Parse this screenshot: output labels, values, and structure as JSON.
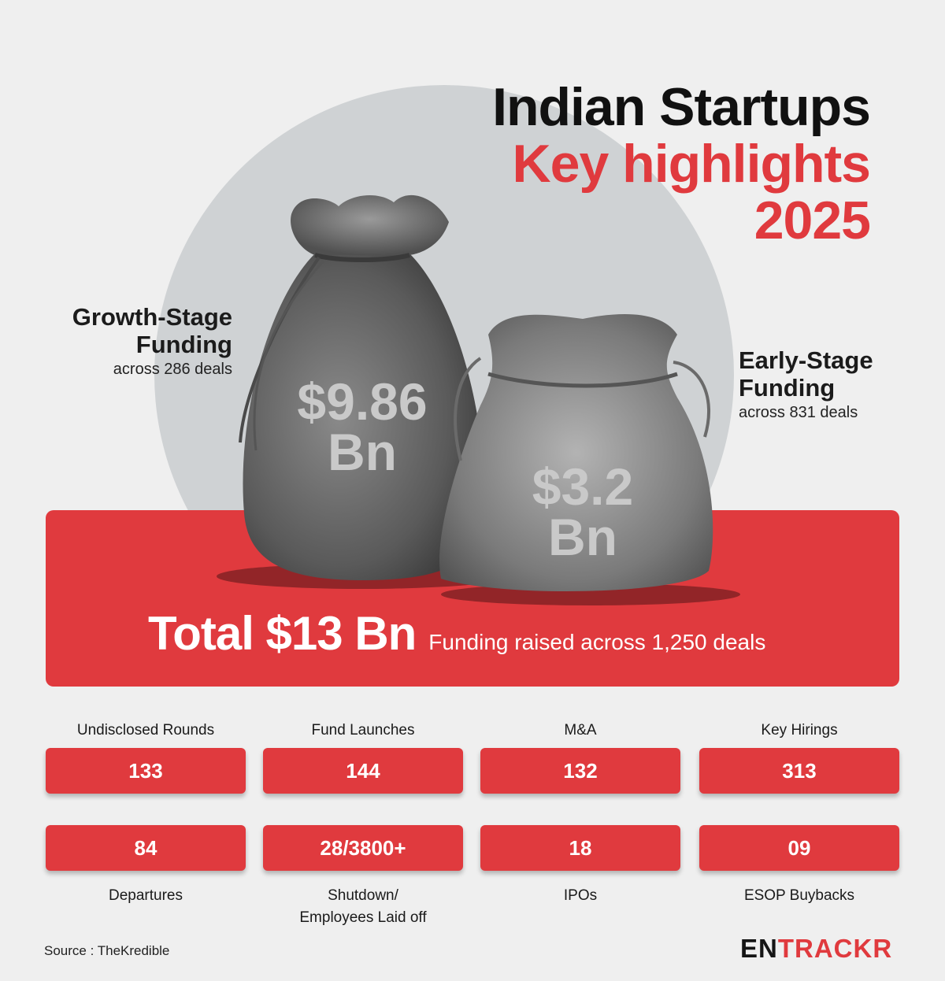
{
  "title": {
    "line1": "Indian Startups",
    "line2": "Key highlights",
    "line3": "2025"
  },
  "growth": {
    "title_line1": "Growth-Stage",
    "title_line2": "Funding",
    "subtitle": "across 286 deals",
    "amount_line1": "$9.86",
    "amount_line2": "Bn"
  },
  "early": {
    "title_line1": "Early-Stage",
    "title_line2": "Funding",
    "subtitle": "across 831 deals",
    "amount_line1": "$3.2",
    "amount_line2": "Bn"
  },
  "total": {
    "amount": "Total $13 Bn",
    "description": "Funding raised across 1,250 deals"
  },
  "stats_top": [
    {
      "label": "Undisclosed Rounds",
      "value": "133"
    },
    {
      "label": "Fund Launches",
      "value": "144"
    },
    {
      "label": "M&A",
      "value": "132"
    },
    {
      "label": "Key Hirings",
      "value": "313"
    }
  ],
  "stats_bottom": [
    {
      "label_line1": "Departures",
      "label_line2": "",
      "value": "84"
    },
    {
      "label_line1": "Shutdown/",
      "label_line2": "Employees Laid off",
      "value": "28/3800+"
    },
    {
      "label_line1": "IPOs",
      "label_line2": "",
      "value": "18"
    },
    {
      "label_line1": "ESOP Buybacks",
      "label_line2": "",
      "value": "09"
    }
  ],
  "source": "Source : TheKredible",
  "logo": {
    "part1": "EN",
    "part2": "TRACKR"
  },
  "colors": {
    "accent": "#e03a3e",
    "background": "#efefef",
    "circle": "#cfd2d4"
  },
  "icons": {
    "growth_bag": "money-bag-icon",
    "early_bag": "money-bag-icon"
  }
}
